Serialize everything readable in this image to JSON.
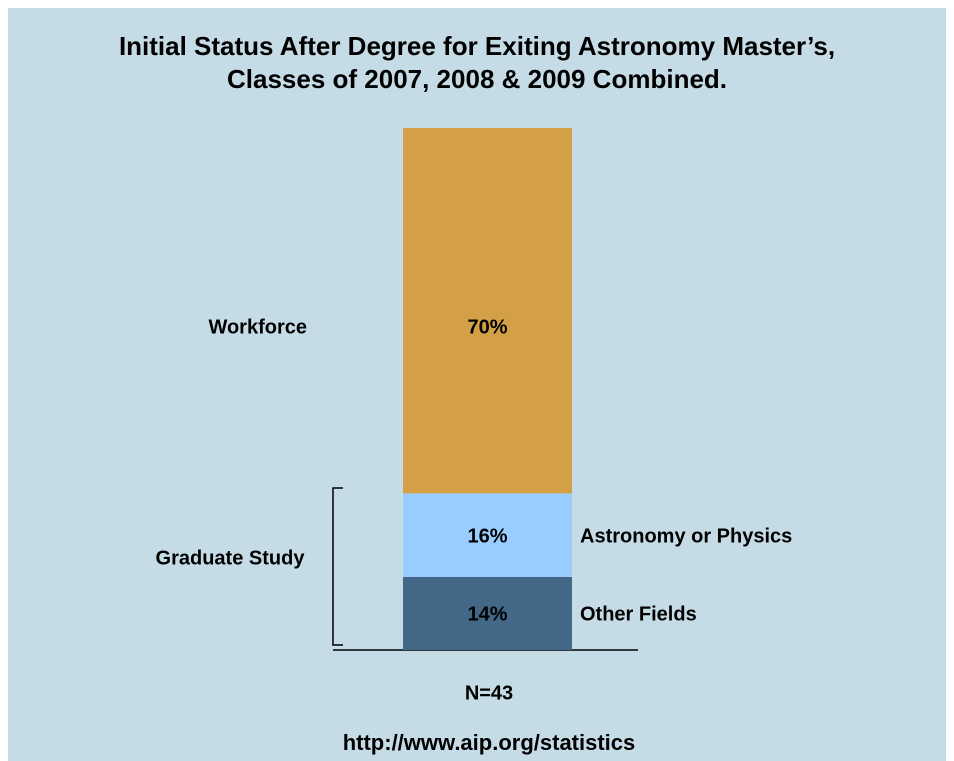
{
  "chart_data": {
    "type": "stacked_bar",
    "title": [
      "Initial Status After Degree for Exiting Astronomy Master’s,",
      "Classes of 2007, 2008 & 2009 Combined."
    ],
    "series": [
      {
        "name": "Other Fields",
        "color": "#426787",
        "values": [
          14
        ],
        "value_labels": [
          "14%"
        ]
      },
      {
        "name": "Astronomy or Physics",
        "color": "#99ccff",
        "values": [
          16
        ],
        "value_labels": [
          "16%"
        ]
      },
      {
        "name": "Workforce",
        "color": "#d4a047",
        "values": [
          70
        ],
        "value_labels": [
          "70%"
        ]
      }
    ],
    "group_label": "Graduate Study",
    "note": "N=43",
    "source": "http://www.aip.org/statistics"
  }
}
